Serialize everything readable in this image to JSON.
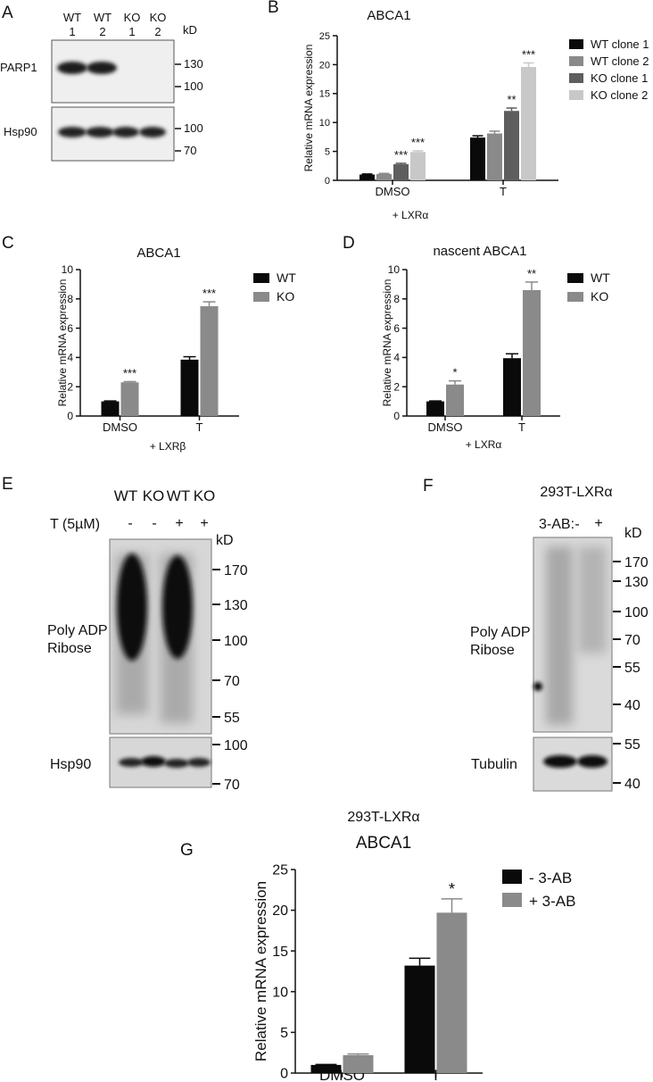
{
  "panels": {
    "A": {
      "letter": "A",
      "lanes": [
        {
          "name": "WT",
          "num": "1"
        },
        {
          "name": "WT",
          "num": "2"
        },
        {
          "name": "KO",
          "num": "1"
        },
        {
          "name": "KO",
          "num": "2"
        }
      ],
      "kd_label": "kD",
      "blots": [
        {
          "label": "PARP1",
          "markers": [
            "130",
            "100"
          ]
        },
        {
          "label": "Hsp90",
          "markers": [
            "100",
            "70"
          ]
        }
      ]
    },
    "E": {
      "letter": "E",
      "lanes": [
        "WT",
        "KO",
        "WT",
        "KO"
      ],
      "treatment_label": "T (5µM)",
      "treatment": [
        "-",
        "-",
        "+",
        "+"
      ],
      "kd_label": "kD",
      "blot1_label": "Poly ADP\nRibose",
      "blot1_markers": [
        "170",
        "130",
        "100",
        "70",
        "55"
      ],
      "blot2_label": "Hsp90",
      "blot2_markers": [
        "100",
        "70"
      ]
    },
    "F": {
      "letter": "F",
      "title": "293T-LXRα",
      "treatment_label": "3-AB:",
      "treatment": [
        "-",
        "+"
      ],
      "kd_label": "kD",
      "blot1_label": "Poly ADP\nRibose",
      "blot1_markers": [
        "170",
        "130",
        "100",
        "70",
        "55",
        "40"
      ],
      "blot2_label": "Tubulin",
      "blot2_markers": [
        "55",
        "40"
      ]
    }
  },
  "chart_data": [
    {
      "id": "B",
      "letter": "B",
      "type": "bar",
      "title": "ABCA1",
      "subtitle": "",
      "ylabel": "Relative mRNA expression",
      "xnote": "+ LXRα",
      "categories": [
        "DMSO",
        "T"
      ],
      "ylim": [
        0,
        25
      ],
      "yticks": [
        0,
        5,
        10,
        15,
        20,
        25
      ],
      "series": [
        {
          "name": "WT clone 1",
          "color": "#0a0a0a",
          "values": [
            1.0,
            7.4
          ],
          "errors": [
            0.1,
            0.3
          ],
          "sig": [
            "",
            ""
          ]
        },
        {
          "name": "WT clone 2",
          "color": "#8a8a8a",
          "values": [
            1.1,
            8.1
          ],
          "errors": [
            0.1,
            0.4
          ],
          "sig": [
            "",
            ""
          ]
        },
        {
          "name": "KO clone 1",
          "color": "#5e5e5e",
          "values": [
            2.8,
            12.0
          ],
          "errors": [
            0.15,
            0.5
          ],
          "sig": [
            "***",
            "**"
          ]
        },
        {
          "name": "KO clone 2",
          "color": "#c8c8c8",
          "values": [
            4.9,
            19.6
          ],
          "errors": [
            0.2,
            0.7
          ],
          "sig": [
            "***",
            "***"
          ]
        }
      ]
    },
    {
      "id": "C",
      "letter": "C",
      "type": "bar",
      "title": "ABCA1",
      "subtitle": "",
      "ylabel": "Relative mRNA expression",
      "xnote": "+ LXRβ",
      "categories": [
        "DMSO",
        "T"
      ],
      "ylim": [
        0,
        10
      ],
      "yticks": [
        0,
        2,
        4,
        6,
        8,
        10
      ],
      "series": [
        {
          "name": "WT",
          "color": "#0a0a0a",
          "values": [
            1.0,
            3.85
          ],
          "errors": [
            0.03,
            0.2
          ],
          "sig": [
            "",
            ""
          ]
        },
        {
          "name": "KO",
          "color": "#8a8a8a",
          "values": [
            2.3,
            7.5
          ],
          "errors": [
            0.05,
            0.3
          ],
          "sig": [
            "***",
            "***"
          ]
        }
      ]
    },
    {
      "id": "D",
      "letter": "D",
      "type": "bar",
      "title": "nascent ABCA1",
      "subtitle": "",
      "ylabel": "Relative mRNA expression",
      "xnote": "+ LXRα",
      "categories": [
        "DMSO",
        "T"
      ],
      "ylim": [
        0,
        10
      ],
      "yticks": [
        0,
        2,
        4,
        6,
        8,
        10
      ],
      "series": [
        {
          "name": "WT",
          "color": "#0a0a0a",
          "values": [
            1.0,
            3.95
          ],
          "errors": [
            0.03,
            0.3
          ],
          "sig": [
            "",
            ""
          ]
        },
        {
          "name": "KO",
          "color": "#8a8a8a",
          "values": [
            2.15,
            8.6
          ],
          "errors": [
            0.25,
            0.55
          ],
          "sig": [
            "*",
            "**"
          ]
        }
      ]
    },
    {
      "id": "G",
      "letter": "G",
      "type": "bar",
      "title": "ABCA1",
      "subtitle": "293T-LXRα",
      "ylabel": "Relative mRNA expression",
      "xnote": "",
      "categories": [
        "DMSO",
        "T"
      ],
      "ylim": [
        0,
        25
      ],
      "yticks": [
        0,
        5,
        10,
        15,
        20,
        25
      ],
      "series": [
        {
          "name": "- 3-AB",
          "color": "#0a0a0a",
          "values": [
            1.0,
            13.2
          ],
          "errors": [
            0.05,
            0.9
          ],
          "sig": [
            "",
            ""
          ]
        },
        {
          "name": "+ 3-AB",
          "color": "#8a8a8a",
          "values": [
            2.2,
            19.7
          ],
          "errors": [
            0.15,
            1.7
          ],
          "sig": [
            "",
            "*"
          ]
        }
      ]
    }
  ]
}
